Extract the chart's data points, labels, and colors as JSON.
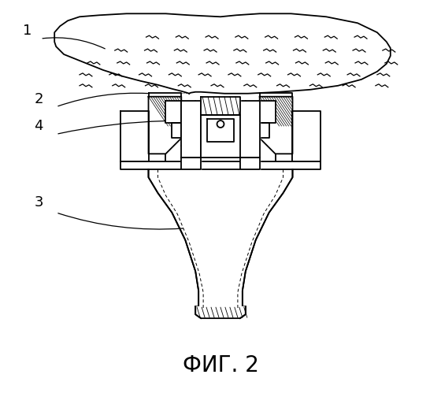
{
  "title": "ФИГ. 2",
  "title_fontsize": 20,
  "bg_color": "#ffffff",
  "line_color": "#000000",
  "figure_width": 5.6,
  "figure_height": 4.99,
  "dpi": 100
}
